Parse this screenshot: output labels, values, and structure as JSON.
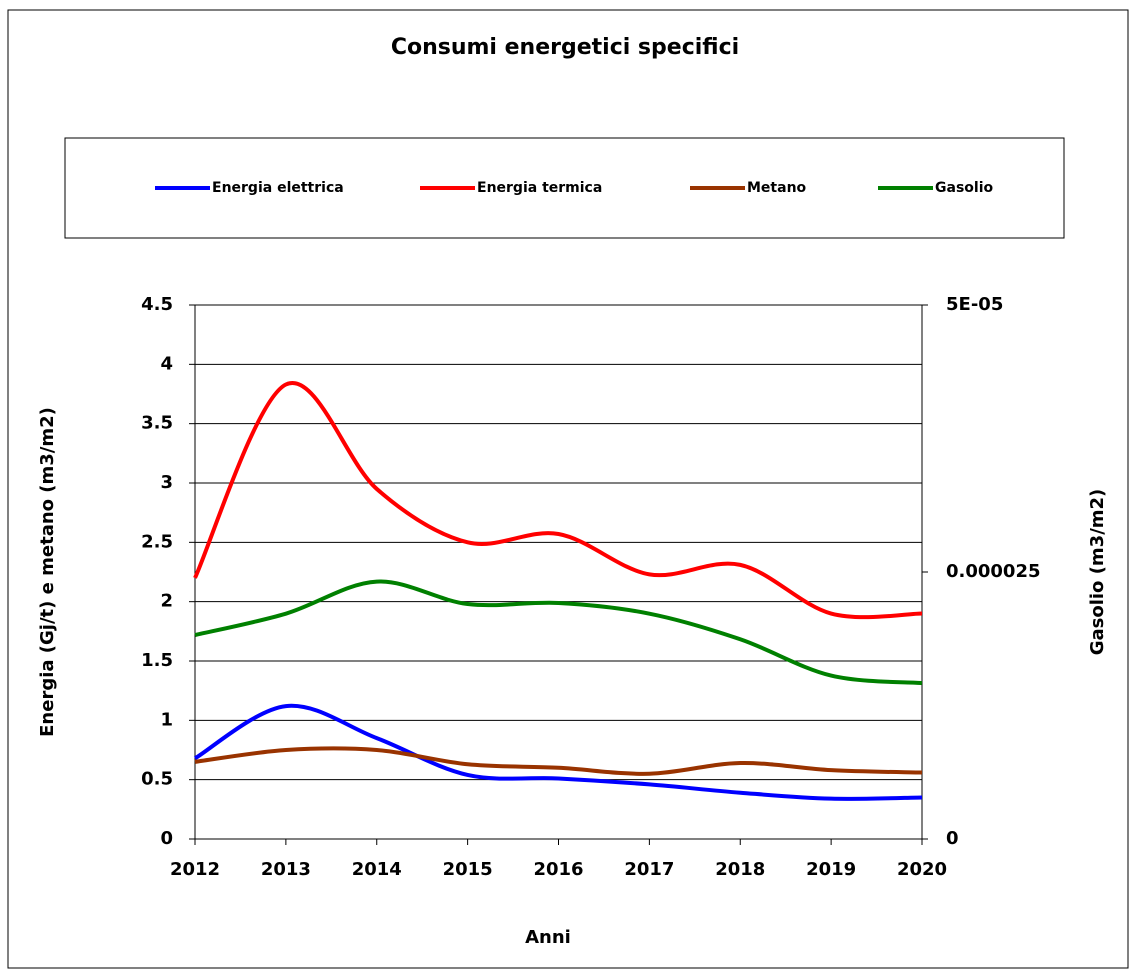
{
  "chart_data": {
    "type": "line",
    "title": "Consumi energetici specifici",
    "xlabel": "Anni",
    "ylabel": "Energia (Gj/t) e metano (m3/m2)",
    "y2label": "Gasolio (m3/m2)",
    "x": [
      2012,
      2013,
      2014,
      2015,
      2016,
      2017,
      2018,
      2019,
      2020
    ],
    "xlim": [
      2012,
      2020
    ],
    "xticks": [
      2012,
      2013,
      2014,
      2015,
      2016,
      2017,
      2018,
      2019,
      2020
    ],
    "ylim": [
      0,
      4.5
    ],
    "yticks": [
      0,
      0.5,
      1,
      1.5,
      2,
      2.5,
      3,
      3.5,
      4,
      4.5
    ],
    "y2lim": [
      0,
      5e-05
    ],
    "y2ticks": [
      0,
      2.5e-05,
      {
        "value": 5e-05,
        "label": "5E-05"
      }
    ],
    "grid": true,
    "legend": "top",
    "smooth": true,
    "series": [
      {
        "name": "Energia elettrica",
        "color": "#0000ff",
        "values": [
          0.68,
          1.12,
          0.85,
          0.54,
          0.51,
          0.46,
          0.39,
          0.34,
          0.35
        ]
      },
      {
        "name": "Energia termica",
        "color": "#ff0000",
        "values": [
          2.2,
          3.83,
          2.95,
          2.5,
          2.57,
          2.23,
          2.31,
          1.9,
          1.9
        ]
      },
      {
        "name": "Metano",
        "color": "#993300",
        "values": [
          0.65,
          0.75,
          0.75,
          0.63,
          0.6,
          0.55,
          0.64,
          0.58,
          0.56
        ]
      },
      {
        "name": "Gasolio",
        "color": "#008000",
        "axis": "y2",
        "values": [
          1.91e-05,
          2.11e-05,
          2.41e-05,
          2.2e-05,
          2.21e-05,
          2.11e-05,
          1.87e-05,
          1.53e-05,
          1.46e-05
        ]
      }
    ]
  }
}
